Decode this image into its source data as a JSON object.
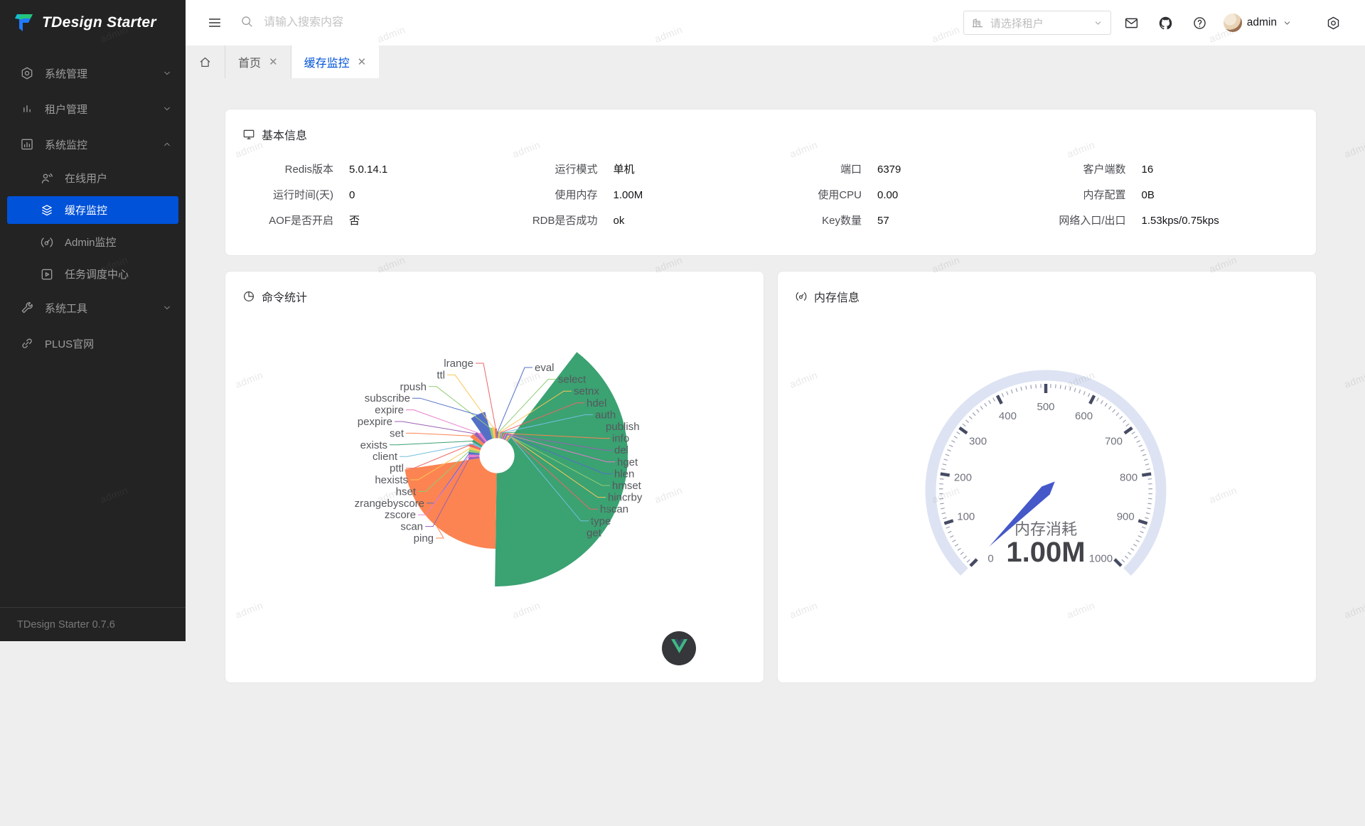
{
  "app": {
    "logo_text": "TDesign Starter",
    "footer_version": "TDesign Starter 0.7.6",
    "watermark_text": "admin"
  },
  "brand": {
    "primary_blue": "#0052d9",
    "sidebar_bg": "#232324"
  },
  "sidebar": {
    "items": [
      {
        "key": "system-management",
        "label": "系统管理",
        "icon": "setting-hexagon-icon",
        "level": 1,
        "chevron": "down"
      },
      {
        "key": "tenant-management",
        "label": "租户管理",
        "icon": "chart-bars-icon",
        "level": 1,
        "chevron": "down"
      },
      {
        "key": "system-monitor",
        "label": "系统监控",
        "icon": "monitor-panel-icon",
        "level": 1,
        "chevron": "up"
      },
      {
        "key": "online-users",
        "label": "在线用户",
        "icon": "online-user-icon",
        "level": 2
      },
      {
        "key": "cache-monitor",
        "label": "缓存监控",
        "icon": "layers-icon",
        "level": 2,
        "active": true
      },
      {
        "key": "admin-monitor",
        "label": "Admin监控",
        "icon": "dashboard-icon",
        "level": 2
      },
      {
        "key": "task-schedule-center",
        "label": "任务调度中心",
        "icon": "task-schedule-icon",
        "level": 2
      },
      {
        "key": "system-tools",
        "label": "系统工具",
        "icon": "wrench-icon",
        "level": 1,
        "chevron": "down"
      },
      {
        "key": "plus-website",
        "label": "PLUS官网",
        "icon": "link-icon",
        "level": 1
      }
    ]
  },
  "header": {
    "search_placeholder": "请输入搜索内容",
    "tenant_placeholder": "请选择租户",
    "user_name": "admin",
    "action_icons": [
      {
        "key": "mail",
        "icon": "mail-icon"
      },
      {
        "key": "github",
        "icon": "github-icon"
      },
      {
        "key": "help",
        "icon": "help-icon"
      }
    ],
    "settings_icon": "setting-hexagon-icon"
  },
  "tabs": {
    "items": [
      {
        "key": "home",
        "label": "首页",
        "closable": true,
        "active": false
      },
      {
        "key": "cache-monitor",
        "label": "缓存监控",
        "closable": true,
        "active": true
      }
    ]
  },
  "basic_info": {
    "title": "基本信息",
    "icon": "monitor-icon",
    "fields": [
      {
        "label": "Redis版本",
        "value": "5.0.14.1"
      },
      {
        "label": "运行模式",
        "value": "单机"
      },
      {
        "label": "端口",
        "value": "6379"
      },
      {
        "label": "客户端数",
        "value": "16"
      },
      {
        "label": "运行时间(天)",
        "value": "0"
      },
      {
        "label": "使用内存",
        "value": "1.00M"
      },
      {
        "label": "使用CPU",
        "value": "0.00"
      },
      {
        "label": "内存配置",
        "value": "0B"
      },
      {
        "label": "AOF是否开启",
        "value": "否"
      },
      {
        "label": "RDB是否成功",
        "value": "ok"
      },
      {
        "label": "Key数量",
        "value": "57"
      },
      {
        "label": "网络入口/出口",
        "value": "1.53kps/0.75kps"
      }
    ]
  },
  "command_stats_card": {
    "title": "命令统计",
    "icon": "pie-chart-icon"
  },
  "memory_card": {
    "title": "内存信息",
    "icon": "dashboard-icon"
  },
  "chart_data": [
    {
      "type": "pie",
      "subtype": "nightingale-rose",
      "title": "命令统计",
      "legend_position": "none",
      "note": "values are relative command-call frequencies estimated from wedge angles/radii",
      "items": [
        {
          "name": "eval",
          "value": 3
        },
        {
          "name": "select",
          "value": 3
        },
        {
          "name": "setnx",
          "value": 3
        },
        {
          "name": "hdel",
          "value": 3
        },
        {
          "name": "auth",
          "value": 3
        },
        {
          "name": "publish",
          "value": 3
        },
        {
          "name": "info",
          "value": 3
        },
        {
          "name": "del",
          "value": 3
        },
        {
          "name": "hget",
          "value": 3
        },
        {
          "name": "hlen",
          "value": 3
        },
        {
          "name": "hmset",
          "value": 3
        },
        {
          "name": "hincrby",
          "value": 3
        },
        {
          "name": "hscan",
          "value": 3
        },
        {
          "name": "type",
          "value": 3
        },
        {
          "name": "get",
          "value": 160
        },
        {
          "name": "ping",
          "value": 90
        },
        {
          "name": "scan",
          "value": 6
        },
        {
          "name": "zscore",
          "value": 6
        },
        {
          "name": "zrangebyscore",
          "value": 6
        },
        {
          "name": "hset",
          "value": 6
        },
        {
          "name": "hexists",
          "value": 6
        },
        {
          "name": "pttl",
          "value": 7
        },
        {
          "name": "client",
          "value": 5
        },
        {
          "name": "exists",
          "value": 6
        },
        {
          "name": "set",
          "value": 9
        },
        {
          "name": "pexpire",
          "value": 8
        },
        {
          "name": "expire",
          "value": 6
        },
        {
          "name": "subscribe",
          "value": 22
        },
        {
          "name": "rpush",
          "value": 6
        },
        {
          "name": "ttl",
          "value": 6
        },
        {
          "name": "lrange",
          "value": 5
        }
      ],
      "palette": [
        "#5470c6",
        "#91cc75",
        "#fac858",
        "#ee6666",
        "#73c0de",
        "#3ba272",
        "#fc8452",
        "#9a60b4",
        "#ea7ccc"
      ],
      "label_columns": {
        "left": [
          "lrange",
          "ttl",
          "rpush",
          "subscribe",
          "expire",
          "pexpire",
          "set",
          "exists",
          "client",
          "pttl",
          "hexists",
          "hset",
          "zrangebyscore",
          "zscore",
          "scan",
          "ping"
        ],
        "right": [
          "eval",
          "select",
          "setnx",
          "hdel",
          "auth",
          "publish",
          "info",
          "del",
          "hget",
          "hlen",
          "hmset",
          "hincrby",
          "hscan",
          "type",
          "get"
        ]
      }
    },
    {
      "type": "gauge",
      "title": "内存消耗",
      "value": 1,
      "value_label": "1.00M",
      "min": 0,
      "max": 1000,
      "tick_labels": [
        "0",
        "100",
        "200",
        "300",
        "400",
        "500",
        "600",
        "700",
        "800",
        "900",
        "1000"
      ],
      "start_angle": 225,
      "end_angle": -45,
      "ring_color": "#dde3f3",
      "needle_color": "#4558c9",
      "major_tick_color": "#454b63",
      "minor_tick_color": "#9aa0b2",
      "tick_label_color": "#70737d",
      "title_color": "#6a6d72",
      "value_color": "#434449"
    }
  ]
}
